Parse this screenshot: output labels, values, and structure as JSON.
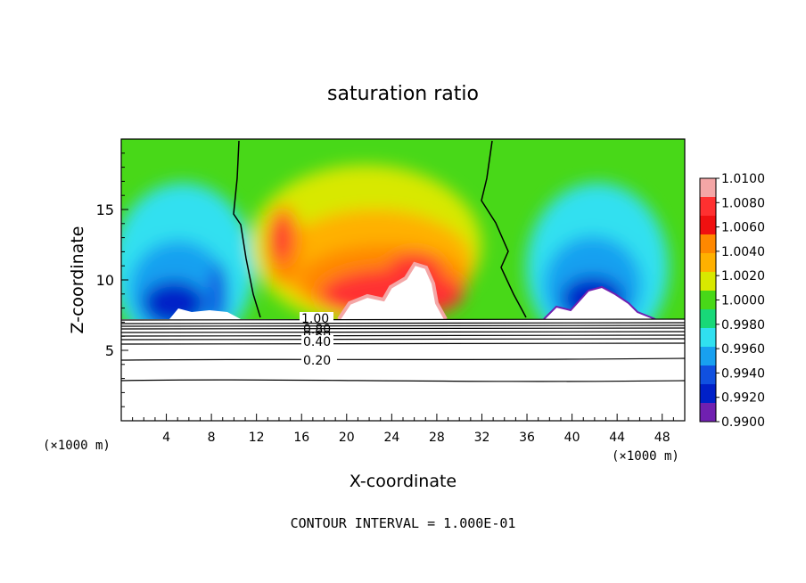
{
  "chart_data": {
    "type": "heatmap",
    "title": "saturation ratio",
    "xlabel": "X-coordinate",
    "ylabel": "Z-coordinate",
    "x_units": "(×1000 m)",
    "xlim": [
      0,
      50
    ],
    "ylim": [
      0,
      20
    ],
    "x_ticks": [
      4,
      8,
      12,
      16,
      20,
      24,
      28,
      32,
      36,
      40,
      44,
      48
    ],
    "y_ticks": [
      5,
      10,
      15
    ],
    "colorbar": {
      "levels": [
        "1.0100",
        "1.0080",
        "1.0060",
        "1.0040",
        "1.0020",
        "1.0000",
        "0.9980",
        "0.9960",
        "0.9940",
        "0.9920",
        "0.9900"
      ],
      "colors": [
        "#f4a6a6",
        "#ff3030",
        "#f01010",
        "#ff8800",
        "#ffb000",
        "#d8e800",
        "#48d818",
        "#18d878",
        "#30e0f0",
        "#18a0f0",
        "#1050e0",
        "#0020c8",
        "#7020b0"
      ]
    },
    "contour_labels": [
      "1.00",
      "0.80",
      "0.60",
      "0.40",
      "0.20"
    ],
    "contour_levels": [
      1.0,
      0.9,
      0.8,
      0.7,
      0.6,
      0.5,
      0.4,
      0.3,
      0.2,
      0.1
    ],
    "footer": "CONTOUR INTERVAL = 1.000E-01",
    "grid": false
  }
}
